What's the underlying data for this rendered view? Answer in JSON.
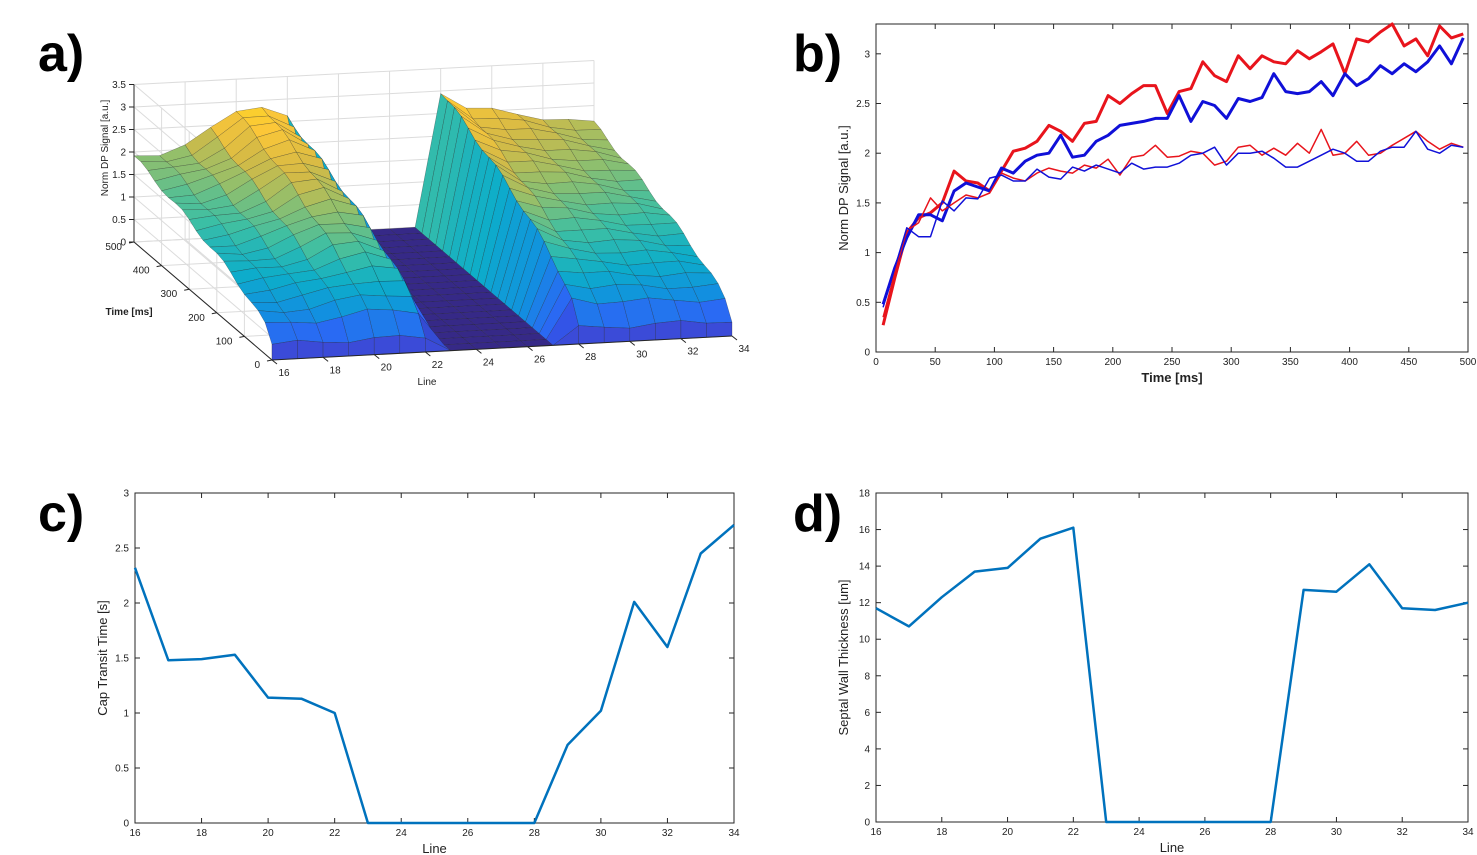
{
  "panels": {
    "a": "a)",
    "b": "b)",
    "c": "c)",
    "d": "d)"
  },
  "chart_data": [
    {
      "id": "a",
      "type": "surface",
      "title": "",
      "xlabel": "Line",
      "ylabel": "Time [ms]",
      "zlabel": "Norm DP Signal [a.u.]",
      "x_ticks": [
        "16",
        "18",
        "20",
        "22",
        "24",
        "26",
        "28",
        "30",
        "32",
        "34"
      ],
      "y_ticks": [
        "0",
        "100",
        "200",
        "300",
        "400",
        "500"
      ],
      "z_ticks": [
        "0",
        "0.5",
        "1",
        "1.5",
        "2",
        "2.5",
        "3",
        "3.5"
      ],
      "xlim": [
        16,
        34
      ],
      "ylim": [
        0,
        500
      ],
      "zlim": [
        0,
        3.5
      ],
      "lines": [
        16,
        17,
        18,
        19,
        20,
        21,
        22,
        23,
        24,
        25,
        26,
        27,
        28,
        29,
        30,
        31,
        32,
        33,
        34
      ],
      "peak_value_at_500ms": [
        1.9,
        1.95,
        2.1,
        2.4,
        2.8,
        2.9,
        2.6,
        0,
        0,
        0,
        0,
        0,
        3.0,
        2.6,
        2.5,
        2.4,
        2.3,
        2.2,
        2.1
      ],
      "grid": true
    },
    {
      "id": "b",
      "type": "line",
      "xlabel": "Time [ms]",
      "ylabel": "Norm DP Signal [a.u.]",
      "xlim": [
        0,
        500
      ],
      "ylim": [
        0,
        3.3
      ],
      "x_ticks": [
        "0",
        "50",
        "100",
        "150",
        "200",
        "250",
        "300",
        "350",
        "400",
        "450",
        "500"
      ],
      "y_ticks": [
        "0",
        "0.5",
        "1",
        "1.5",
        "2",
        "2.5",
        "3"
      ],
      "x": [
        6,
        16,
        26,
        36,
        46,
        56,
        66,
        76,
        86,
        96,
        106,
        116,
        126,
        136,
        146,
        156,
        166,
        176,
        186,
        196,
        206,
        216,
        226,
        236,
        246,
        256,
        266,
        276,
        286,
        296,
        306,
        316,
        326,
        336,
        346,
        356,
        366,
        376,
        386,
        396,
        406,
        416,
        426,
        436,
        446,
        456,
        466,
        476,
        486,
        496
      ],
      "series": [
        {
          "name": "red-thick",
          "color": "#e8141c",
          "width": 3,
          "values": [
            0.27,
            0.75,
            1.2,
            1.35,
            1.4,
            1.5,
            1.82,
            1.72,
            1.7,
            1.62,
            1.82,
            2.02,
            2.05,
            2.12,
            2.28,
            2.22,
            2.12,
            2.3,
            2.32,
            2.58,
            2.5,
            2.6,
            2.68,
            2.68,
            2.4,
            2.62,
            2.65,
            2.92,
            2.78,
            2.72,
            2.98,
            2.85,
            2.98,
            2.92,
            2.9,
            3.03,
            2.95,
            3.02,
            3.1,
            2.8,
            3.15,
            3.12,
            3.22,
            3.3,
            3.08,
            3.15,
            2.98,
            3.28,
            3.16,
            3.2
          ]
        },
        {
          "name": "blue-thick",
          "color": "#1010d8",
          "width": 3,
          "values": [
            0.48,
            0.85,
            1.15,
            1.38,
            1.38,
            1.32,
            1.62,
            1.7,
            1.66,
            1.62,
            1.85,
            1.8,
            1.92,
            1.98,
            2.0,
            2.18,
            1.96,
            1.98,
            2.12,
            2.18,
            2.28,
            2.3,
            2.32,
            2.35,
            2.35,
            2.58,
            2.32,
            2.52,
            2.48,
            2.35,
            2.55,
            2.52,
            2.56,
            2.8,
            2.62,
            2.6,
            2.62,
            2.72,
            2.58,
            2.8,
            2.68,
            2.75,
            2.88,
            2.8,
            2.9,
            2.82,
            2.92,
            3.08,
            2.9,
            3.16
          ]
        },
        {
          "name": "red-thin",
          "color": "#e8141c",
          "width": 1.5,
          "values": [
            0.35,
            0.8,
            1.22,
            1.3,
            1.55,
            1.42,
            1.5,
            1.58,
            1.55,
            1.6,
            1.8,
            1.75,
            1.72,
            1.8,
            1.85,
            1.82,
            1.8,
            1.88,
            1.85,
            1.94,
            1.78,
            1.96,
            1.98,
            2.08,
            1.96,
            1.97,
            2.02,
            2.0,
            1.88,
            1.92,
            2.06,
            2.08,
            1.98,
            2.05,
            1.98,
            2.1,
            2.0,
            2.24,
            1.98,
            2.0,
            2.12,
            1.98,
            2.0,
            2.08,
            2.15,
            2.22,
            2.12,
            2.04,
            2.1,
            2.06
          ]
        },
        {
          "name": "blue-thin",
          "color": "#1010d8",
          "width": 1.5,
          "values": [
            0.45,
            0.85,
            1.25,
            1.16,
            1.16,
            1.52,
            1.42,
            1.55,
            1.54,
            1.75,
            1.78,
            1.72,
            1.72,
            1.84,
            1.76,
            1.74,
            1.86,
            1.82,
            1.88,
            1.84,
            1.8,
            1.9,
            1.84,
            1.86,
            1.86,
            1.9,
            1.98,
            2.0,
            2.06,
            1.88,
            2.0,
            2.0,
            2.02,
            1.95,
            1.86,
            1.86,
            1.92,
            1.98,
            2.04,
            2.0,
            1.92,
            1.92,
            2.02,
            2.06,
            2.06,
            2.22,
            2.04,
            2.0,
            2.08,
            2.06
          ]
        }
      ]
    },
    {
      "id": "c",
      "type": "line",
      "xlabel": "Line",
      "ylabel": "Cap Transit Time [s]",
      "xlim": [
        16,
        34
      ],
      "ylim": [
        0,
        3
      ],
      "x_ticks": [
        "16",
        "18",
        "20",
        "22",
        "24",
        "26",
        "28",
        "30",
        "32",
        "34"
      ],
      "y_ticks": [
        "0",
        "0.5",
        "1",
        "1.5",
        "2",
        "2.5",
        "3"
      ],
      "x": [
        16,
        17,
        18,
        19,
        20,
        21,
        22,
        23,
        24,
        25,
        26,
        27,
        28,
        29,
        30,
        31,
        32,
        33,
        34
      ],
      "series": [
        {
          "name": "transit",
          "color": "#0072bd",
          "values": [
            2.32,
            1.48,
            1.49,
            1.53,
            1.14,
            1.13,
            1.0,
            0,
            0,
            0,
            0,
            0,
            0,
            0.71,
            1.02,
            2.01,
            1.6,
            2.45,
            2.71
          ]
        }
      ]
    },
    {
      "id": "d",
      "type": "line",
      "xlabel": "Line",
      "ylabel": "Septal Wall Thickness [um]",
      "xlim": [
        16,
        34
      ],
      "ylim": [
        0,
        18
      ],
      "x_ticks": [
        "16",
        "18",
        "20",
        "22",
        "24",
        "26",
        "28",
        "30",
        "32",
        "34"
      ],
      "y_ticks": [
        "0",
        "2",
        "4",
        "6",
        "8",
        "10",
        "12",
        "14",
        "16",
        "18"
      ],
      "x": [
        16,
        17,
        18,
        19,
        20,
        21,
        22,
        23,
        24,
        25,
        26,
        27,
        28,
        29,
        30,
        31,
        32,
        33,
        34
      ],
      "series": [
        {
          "name": "thickness",
          "color": "#0072bd",
          "values": [
            11.7,
            10.7,
            12.3,
            13.7,
            13.9,
            15.5,
            16.1,
            0,
            0,
            0,
            0,
            0,
            0,
            12.7,
            12.6,
            14.1,
            11.7,
            11.6,
            12.0
          ]
        }
      ]
    }
  ]
}
